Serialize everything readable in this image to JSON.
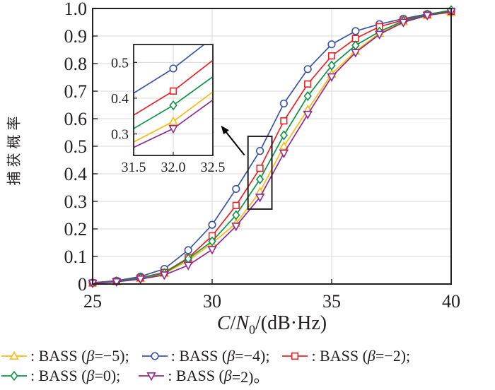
{
  "figure": {
    "ylabel": "捕获概率",
    "xlabel_parts": {
      "c": "C",
      "slash1": "/",
      "n": "N",
      "sub": "0",
      "rest": "/(dB·Hz)"
    }
  },
  "colors": {
    "axis": "#231F20",
    "grid": "#D8D8D8",
    "yellow": "#FDB813",
    "blue": "#3953A4",
    "red": "#EC2024",
    "green": "#0B9444",
    "purple": "#92278F"
  },
  "chart_data": {
    "type": "line",
    "title": "",
    "xlabel": "C/N0/(dB·Hz)",
    "ylabel": "捕获概率",
    "xlim": [
      25,
      40
    ],
    "ylim": [
      0,
      1
    ],
    "xticks": [
      25,
      30,
      35,
      40
    ],
    "xtick_labels": [
      "25",
      "30",
      "35",
      "40"
    ],
    "yticks": [
      0,
      0.1,
      0.2,
      0.3,
      0.4,
      0.5,
      0.6,
      0.7,
      0.8,
      0.9,
      1.0
    ],
    "ytick_labels": [
      "0",
      "0.1",
      "0.2",
      "0.3",
      "0.4",
      "0.5",
      "0.6",
      "0.7",
      "0.8",
      "0.9",
      "1.0"
    ],
    "grid_vertical_at": [
      30,
      35
    ],
    "grid_horizontal_at": [
      0.1,
      0.2,
      0.3,
      0.4,
      0.5,
      0.6,
      0.7,
      0.8,
      0.9
    ],
    "x": [
      25,
      26,
      27,
      28,
      29,
      30,
      31,
      32,
      33,
      34,
      35,
      36,
      37,
      38,
      39,
      40
    ],
    "series": [
      {
        "name": "BASS (β=−5)",
        "marker": "triangle-up",
        "color_key": "yellow",
        "values": [
          0.004,
          0.009,
          0.02,
          0.038,
          0.085,
          0.148,
          0.22,
          0.335,
          0.5,
          0.633,
          0.762,
          0.845,
          0.91,
          0.952,
          0.975,
          0.985
        ]
      },
      {
        "name": "BASS (β=−4)",
        "marker": "circle",
        "color_key": "blue",
        "values": [
          0.005,
          0.012,
          0.027,
          0.055,
          0.123,
          0.215,
          0.345,
          0.483,
          0.655,
          0.78,
          0.87,
          0.918,
          0.943,
          0.963,
          0.98,
          0.99
        ]
      },
      {
        "name": "BASS (β=−2)",
        "marker": "square",
        "color_key": "red",
        "values": [
          0.004,
          0.01,
          0.023,
          0.042,
          0.095,
          0.175,
          0.285,
          0.42,
          0.592,
          0.726,
          0.828,
          0.891,
          0.934,
          0.958,
          0.978,
          0.99
        ]
      },
      {
        "name": "BASS (β=0)",
        "marker": "diamond",
        "color_key": "green",
        "values": [
          0.004,
          0.01,
          0.022,
          0.04,
          0.092,
          0.155,
          0.25,
          0.38,
          0.54,
          0.682,
          0.793,
          0.866,
          0.916,
          0.955,
          0.978,
          0.994
        ]
      },
      {
        "name": "BASS (β=2)",
        "marker": "triangle-down",
        "color_key": "purple",
        "values": [
          0.003,
          0.008,
          0.018,
          0.033,
          0.068,
          0.125,
          0.21,
          0.315,
          0.475,
          0.616,
          0.752,
          0.84,
          0.906,
          0.95,
          0.975,
          0.988
        ]
      }
    ],
    "inset": {
      "xlim": [
        31.5,
        32.5
      ],
      "ylim": [
        0.24,
        0.55
      ],
      "xticks": [
        31.5,
        32.0,
        32.5
      ],
      "xtick_labels": [
        "31.5",
        "32.0",
        "32.5"
      ],
      "yticks": [
        0.3,
        0.4,
        0.5
      ],
      "ytick_labels": [
        "0.3",
        "0.4",
        "0.5"
      ],
      "marker_x": 32,
      "grid_vertical_at": [
        32.0
      ]
    },
    "annotations": {
      "zoom_rect": {
        "x1": 31.5,
        "x2": 32.5,
        "y1": 0.272,
        "y2": 0.536
      },
      "arrow": {
        "x1": 31.35,
        "y1": 0.468,
        "x2": 30.37,
        "y2": 0.575
      }
    },
    "legend_position": "below"
  },
  "legend": {
    "rows": [
      [
        {
          "marker": "triangle-up",
          "color_key": "yellow",
          "pre": ": BASS (",
          "beta": "β",
          "post": "=−5);"
        },
        {
          "marker": "circle",
          "color_key": "blue",
          "pre": ": BASS (",
          "beta": "β",
          "post": "=−4);"
        },
        {
          "marker": "square",
          "color_key": "red",
          "pre": ": BASS (",
          "beta": "β",
          "post": "=−2);"
        }
      ],
      [
        {
          "marker": "diamond",
          "color_key": "green",
          "pre": ": BASS (",
          "beta": "β",
          "post": "=0);"
        },
        {
          "marker": "triangle-down",
          "color_key": "purple",
          "pre": ": BASS (",
          "beta": "β",
          "post": "=2)。"
        }
      ]
    ]
  }
}
